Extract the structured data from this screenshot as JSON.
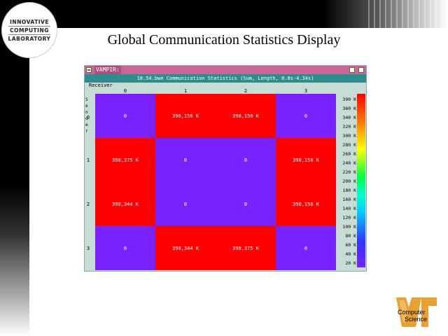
{
  "logo": {
    "line1": "INNOVATIVE",
    "line2": "COMPUTING",
    "line3": "LABORATORY"
  },
  "slide_title": "Global Communication Statistics Display",
  "window": {
    "title": "VAMPIR:",
    "header": "10.54.bwe Communication Statistics (Sum, Length, 0.0s-4.34s)",
    "receiver_label": "Receiver",
    "sender_letters": [
      "S",
      "e",
      "n",
      "d",
      "e",
      "r"
    ],
    "columns": [
      "0",
      "1",
      "2",
      "3"
    ],
    "rows": [
      {
        "label": "0",
        "cells": [
          "0",
          "390,156 K",
          "390,156 K",
          "0"
        ]
      },
      {
        "label": "1",
        "cells": [
          "390,375 K",
          "0",
          "0",
          "390,156 K"
        ]
      },
      {
        "label": "2",
        "cells": [
          "390,344 K",
          "0",
          "0",
          "390,156 K"
        ]
      },
      {
        "label": "3",
        "cells": [
          "0",
          "390,344 K",
          "390,375 K",
          "0"
        ]
      }
    ],
    "scale": [
      "390 K",
      "360 K",
      "340 K",
      "320 K",
      "300 K",
      "280 K",
      "260 K",
      "240 K",
      "220 K",
      "200 K",
      "180 K",
      "160 K",
      "140 K",
      "120 K",
      "100 K",
      "80 K",
      "60 K",
      "40 K",
      "20 K"
    ],
    "colors": {
      "high": "#ff0000",
      "low": "#7722ff"
    }
  },
  "cs_logo": {
    "line1": "Computer",
    "line2": "Science"
  }
}
